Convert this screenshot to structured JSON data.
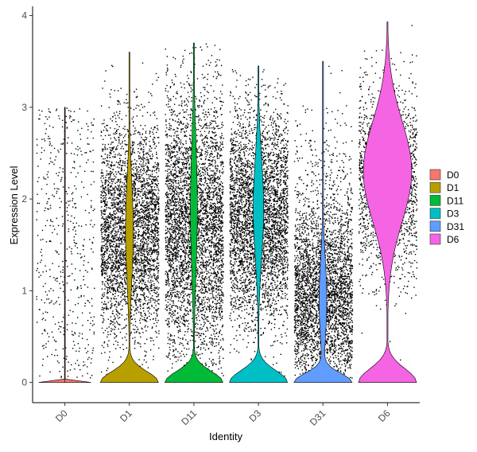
{
  "chart_data": {
    "type": "violin",
    "xlabel": "Identity",
    "ylabel": "Expression Level",
    "ylim": [
      -0.22,
      4.1
    ],
    "yticks": [
      0,
      1,
      2,
      3,
      4
    ],
    "categories": [
      "D0",
      "D1",
      "D11",
      "D3",
      "D31",
      "D6"
    ],
    "legend": {
      "position": "right",
      "entries": [
        "D0",
        "D1",
        "D11",
        "D3",
        "D31",
        "D6"
      ]
    },
    "grid": false,
    "series": [
      {
        "name": "D0",
        "color": "#F8766D",
        "max": 3.0,
        "points_visible": true
      },
      {
        "name": "D1",
        "color": "#B79F00",
        "max": 3.6,
        "points_visible": true
      },
      {
        "name": "D11",
        "color": "#00BA38",
        "max": 3.7,
        "points_visible": true
      },
      {
        "name": "D3",
        "color": "#00BFC4",
        "max": 3.45,
        "points_visible": true
      },
      {
        "name": "D31",
        "color": "#619CFF",
        "max": 3.5,
        "points_visible": true
      },
      {
        "name": "D6",
        "color": "#F564E3",
        "max": 3.93,
        "points_visible": true
      }
    ]
  }
}
